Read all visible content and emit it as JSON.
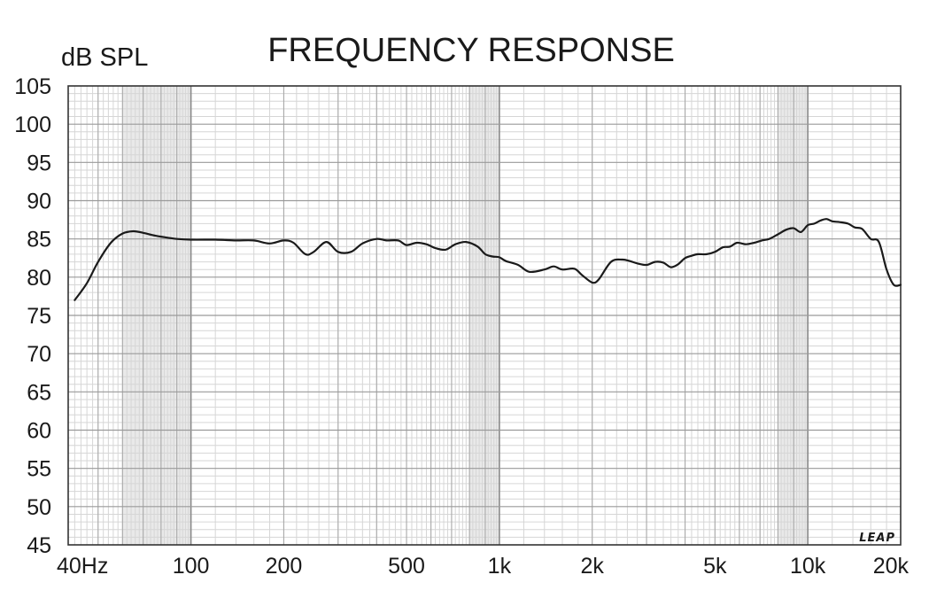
{
  "chart_data": {
    "type": "line",
    "title": "FREQUENCY RESPONSE",
    "ylabel": "dB SPL",
    "xlabel": "",
    "xscale": "log",
    "xlim": [
      40,
      20000
    ],
    "ylim": [
      45,
      105
    ],
    "grid": true,
    "watermark": "LEAP",
    "xticks": [
      {
        "value": 40,
        "label": "40Hz"
      },
      {
        "value": 100,
        "label": "100"
      },
      {
        "value": 200,
        "label": "200"
      },
      {
        "value": 500,
        "label": "500"
      },
      {
        "value": 1000,
        "label": "1k"
      },
      {
        "value": 2000,
        "label": "2k"
      },
      {
        "value": 5000,
        "label": "5k"
      },
      {
        "value": 10000,
        "label": "10k"
      },
      {
        "value": 20000,
        "label": "20k"
      }
    ],
    "yticks": [
      {
        "value": 105,
        "label": "105"
      },
      {
        "value": 100,
        "label": "100"
      },
      {
        "value": 95,
        "label": "95"
      },
      {
        "value": 90,
        "label": "90"
      },
      {
        "value": 85,
        "label": "85"
      },
      {
        "value": 80,
        "label": "80"
      },
      {
        "value": 75,
        "label": "75"
      },
      {
        "value": 70,
        "label": "70"
      },
      {
        "value": 65,
        "label": "65"
      },
      {
        "value": 60,
        "label": "60"
      },
      {
        "value": 55,
        "label": "55"
      },
      {
        "value": 50,
        "label": "50"
      },
      {
        "value": 45,
        "label": "45"
      }
    ],
    "series": [
      {
        "line_color": "#1a1a1a",
        "x": [
          42,
          46,
          50,
          55,
          60,
          65,
          70,
          75,
          80,
          90,
          100,
          120,
          140,
          160,
          180,
          200,
          215,
          235,
          250,
          275,
          300,
          330,
          360,
          400,
          430,
          470,
          500,
          540,
          580,
          620,
          670,
          720,
          780,
          850,
          900,
          950,
          1000,
          1050,
          1150,
          1250,
          1400,
          1500,
          1600,
          1750,
          1850,
          2000,
          2100,
          2300,
          2500,
          2650,
          2800,
          3000,
          3200,
          3400,
          3600,
          3800,
          4000,
          4200,
          4400,
          4700,
          5000,
          5300,
          5600,
          5900,
          6300,
          6700,
          7100,
          7500,
          8000,
          8500,
          9000,
          9500,
          10000,
          10500,
          11000,
          11500,
          12000,
          12700,
          13500,
          14200,
          15000,
          16000,
          17000,
          18000,
          19000,
          20000
        ],
        "y": [
          77.0,
          79.2,
          82.0,
          84.5,
          85.7,
          86.0,
          85.8,
          85.5,
          85.3,
          85.0,
          84.9,
          84.9,
          84.8,
          84.8,
          84.4,
          84.8,
          84.5,
          83.0,
          83.3,
          84.6,
          83.3,
          83.3,
          84.4,
          85.0,
          84.8,
          84.8,
          84.2,
          84.5,
          84.3,
          83.8,
          83.6,
          84.3,
          84.6,
          84.0,
          83.0,
          82.7,
          82.6,
          82.1,
          81.6,
          80.7,
          81.0,
          81.4,
          81.0,
          81.1,
          80.3,
          79.3,
          79.7,
          82.0,
          82.3,
          82.1,
          81.8,
          81.6,
          82.0,
          81.9,
          81.3,
          81.7,
          82.5,
          82.8,
          83.0,
          83.0,
          83.3,
          83.9,
          84.0,
          84.5,
          84.3,
          84.5,
          84.8,
          85.0,
          85.6,
          86.2,
          86.4,
          85.9,
          86.8,
          87.0,
          87.4,
          87.6,
          87.3,
          87.2,
          87.0,
          86.5,
          86.3,
          85.0,
          84.6,
          81.0,
          79.0,
          79.0
        ]
      }
    ]
  }
}
